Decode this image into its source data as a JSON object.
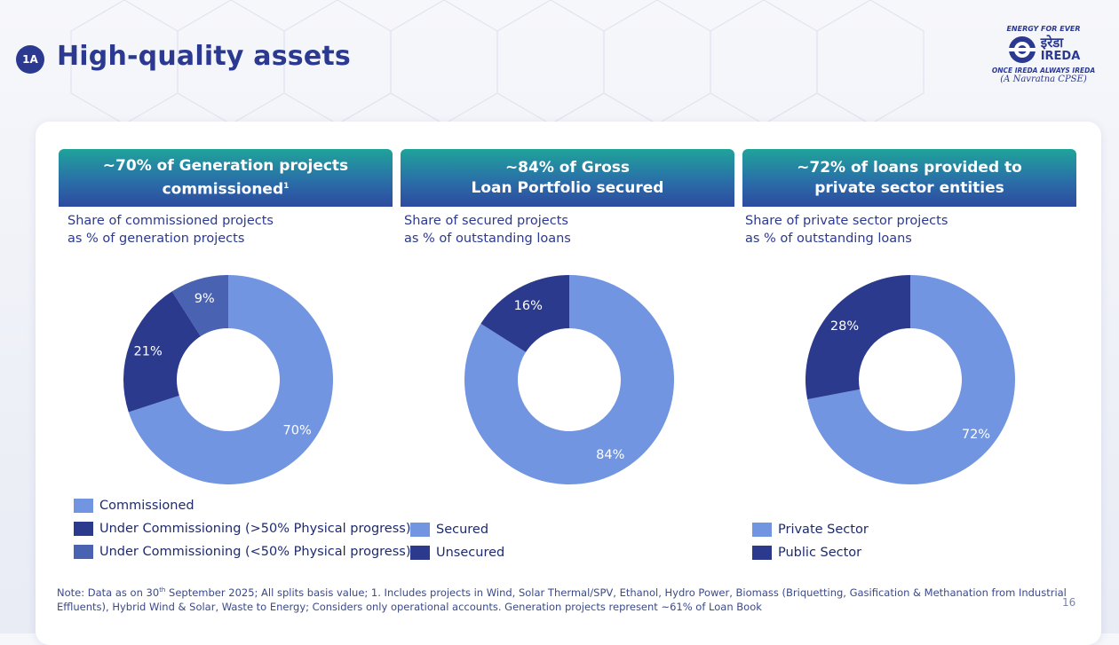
{
  "header": {
    "section_badge": "1A",
    "title": "High-quality assets"
  },
  "logo": {
    "tagline": "ENERGY FOR EVER",
    "name_hindi": "इरेडा",
    "name_english": "IREDA",
    "slogan": "ONCE IREDA ALWAYS IREDA",
    "status": "(A Navratna CPSE)"
  },
  "colors": {
    "light_blue": "#7195e0",
    "dark_navy": "#2b3a8c",
    "mid_blue": "#4a62b2",
    "brand": "#2b3990"
  },
  "panels": [
    {
      "heading_line1": "~70% of Generation projects",
      "heading_line2": "commissioned",
      "heading_sup": "1",
      "subtitle_line1": "Share of commissioned projects",
      "subtitle_line2": "as % of generation projects"
    },
    {
      "heading_line1": "~84% of Gross",
      "heading_line2": "Loan Portfolio secured",
      "heading_sup": "",
      "subtitle_line1": "Share of secured projects",
      "subtitle_line2": "as % of outstanding loans"
    },
    {
      "heading_line1": "~72% of loans provided to",
      "heading_line2": "private sector entities",
      "heading_sup": "",
      "subtitle_line1": "Share of private sector projects",
      "subtitle_line2": "as % of outstanding loans"
    }
  ],
  "chart_data": [
    {
      "type": "pie",
      "variant": "donut",
      "title": "Share of commissioned projects as % of generation projects",
      "categories": [
        "Commissioned",
        "Under Commissioning (>50% Physical progress)",
        "Under Commissioning (<50% Physical progress)"
      ],
      "values": [
        70,
        21,
        9
      ],
      "data_labels": [
        "70%",
        "21%",
        "9%"
      ],
      "colors": [
        "#7195e0",
        "#2b3a8c",
        "#4a62b2"
      ]
    },
    {
      "type": "pie",
      "variant": "donut",
      "title": "Share of secured projects as % of outstanding loans",
      "categories": [
        "Secured",
        "Unsecured"
      ],
      "values": [
        84,
        16
      ],
      "data_labels": [
        "84%",
        "16%"
      ],
      "colors": [
        "#7195e0",
        "#2b3a8c"
      ]
    },
    {
      "type": "pie",
      "variant": "donut",
      "title": "Share of private sector projects as % of outstanding loans",
      "categories": [
        "Private Sector",
        "Public Sector"
      ],
      "values": [
        72,
        28
      ],
      "data_labels": [
        "72%",
        "28%"
      ],
      "colors": [
        "#7195e0",
        "#2b3a8c"
      ]
    }
  ],
  "footer": {
    "note_pre": "Note: Data as on 30",
    "note_sup": "th",
    "note_post": " September 2025; All splits basis value; 1. Includes projects in Wind, Solar Thermal/SPV, Ethanol, Hydro Power, Biomass (Briquetting, Gasification & Methanation from Industrial Effluents), Hybrid Wind & Solar, Waste to Energy; Considers only operational accounts. Generation projects represent ~61% of Loan Book",
    "page_number": "16"
  }
}
